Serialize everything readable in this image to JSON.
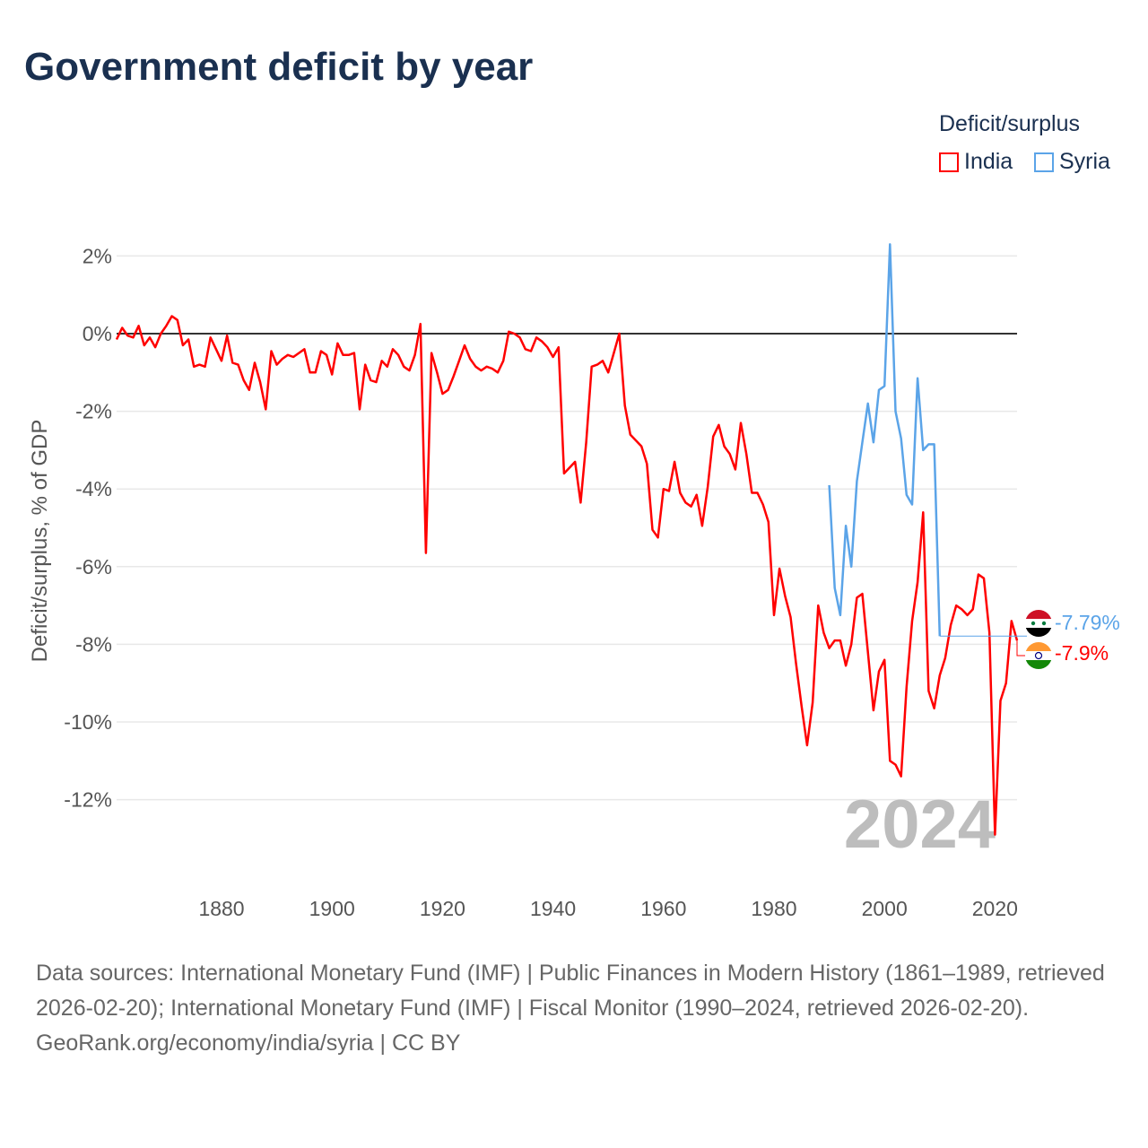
{
  "title": "Government deficit by year",
  "legend": {
    "title": "Deficit/surplus",
    "items": [
      {
        "name": "India",
        "color": "#ff0000"
      },
      {
        "name": "Syria",
        "color": "#5ba4e8"
      }
    ]
  },
  "year_watermark": "2024",
  "footer": {
    "sources": "Data sources: International Monetary Fund (IMF) | Public Finances in Modern History (1861–1989, retrieved 2026-02-20); International Monetary Fund (IMF) | Fiscal Monitor (1990–2024, retrieved 2026-02-20).",
    "credit": "GeoRank.org/economy/india/syria | CC BY"
  },
  "chart_data": {
    "type": "line",
    "title": "Government deficit by year",
    "ylabel": "Deficit/surplus, % of GDP",
    "xlabel": "",
    "xlim": [
      1861,
      2024
    ],
    "ylim": [
      -13,
      2.5
    ],
    "x_ticks": [
      1880,
      1900,
      1920,
      1940,
      1960,
      1980,
      2000,
      2020
    ],
    "y_ticks": [
      2,
      0,
      -2,
      -4,
      -6,
      -8,
      -10,
      -12
    ],
    "y_tick_labels": [
      "2%",
      "0%",
      "-2%",
      "-4%",
      "-6%",
      "-8%",
      "-10%",
      "-12%"
    ],
    "x_tick_labels": [
      "1880",
      "1900",
      "1920",
      "1940",
      "1960",
      "1980",
      "2000",
      "2020"
    ],
    "grid": true,
    "legend_position": "top-right",
    "series": [
      {
        "name": "India",
        "color": "#ff0000",
        "start_year": 1861,
        "end_label": "-7.9%",
        "values": [
          -0.15,
          0.15,
          -0.05,
          -0.1,
          0.2,
          -0.3,
          -0.1,
          -0.35,
          0,
          0.2,
          0.45,
          0.35,
          -0.3,
          -0.15,
          -0.85,
          -0.8,
          -0.85,
          -0.1,
          -0.4,
          -0.7,
          -0.05,
          -0.75,
          -0.8,
          -1.2,
          -1.45,
          -0.75,
          -1.25,
          -1.95,
          -0.45,
          -0.8,
          -0.65,
          -0.55,
          -0.6,
          -0.5,
          -0.4,
          -1.0,
          -1.0,
          -0.45,
          -0.55,
          -1.05,
          -0.25,
          -0.55,
          -0.55,
          -0.5,
          -1.95,
          -0.8,
          -1.2,
          -1.25,
          -0.7,
          -0.85,
          -0.4,
          -0.55,
          -0.85,
          -0.95,
          -0.55,
          0.25,
          -5.65,
          -0.5,
          -1.0,
          -1.55,
          -1.45,
          -1.1,
          -0.7,
          -0.3,
          -0.65,
          -0.85,
          -0.95,
          -0.85,
          -0.9,
          -1.0,
          -0.7,
          0.05,
          0,
          -0.1,
          -0.4,
          -0.45,
          -0.1,
          -0.2,
          -0.35,
          -0.6,
          -0.35,
          -3.6,
          -3.45,
          -3.3,
          -4.35,
          -2.8,
          -0.85,
          -0.8,
          -0.7,
          -1.0,
          -0.5,
          0,
          -1.85,
          -2.6,
          -2.75,
          -2.9,
          -3.35,
          -5.05,
          -5.25,
          -4.0,
          -4.05,
          -3.3,
          -4.1,
          -4.35,
          -4.45,
          -4.15,
          -4.95,
          -3.95,
          -2.65,
          -2.35,
          -2.9,
          -3.1,
          -3.5,
          -2.3,
          -3.1,
          -4.1,
          -4.1,
          -4.4,
          -4.85,
          -7.25,
          -6.05,
          -6.75,
          -7.3,
          -8.5,
          -9.6,
          -10.6,
          -9.5,
          -7.0,
          -7.7,
          -8.1,
          -7.9,
          -7.9,
          -8.55,
          -8.0,
          -6.8,
          -6.7,
          -8.2,
          -9.7,
          -8.7,
          -8.4,
          -11.0,
          -11.1,
          -11.4,
          -9.1,
          -7.4,
          -6.4,
          -4.6,
          -9.2,
          -9.65,
          -8.8,
          -8.35,
          -7.5,
          -7.0,
          -7.1,
          -7.25,
          -7.1,
          -6.2,
          -6.3,
          -7.7,
          -12.9,
          -9.45,
          -9.0,
          -7.4,
          -7.9
        ]
      },
      {
        "name": "Syria",
        "color": "#5ba4e8",
        "start_year": 1990,
        "end_label": "-7.79%",
        "values": [
          -3.9,
          -6.55,
          -7.25,
          -4.95,
          -6.0,
          -3.8,
          -2.8,
          -1.8,
          -2.8,
          -1.45,
          -1.35,
          2.3,
          -2.0,
          -2.7,
          -4.15,
          -4.4,
          -1.15,
          -3.0,
          -2.85,
          -2.85,
          -7.79
        ]
      }
    ]
  }
}
